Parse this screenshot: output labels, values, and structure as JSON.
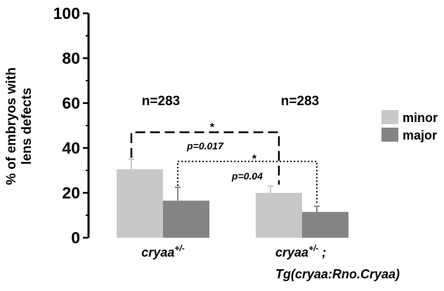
{
  "chart_data": {
    "type": "bar",
    "ylabel_lines": [
      "% of embryos with",
      "lens defects"
    ],
    "ylim": [
      0,
      100
    ],
    "yticks": [
      0,
      20,
      40,
      60,
      80,
      100
    ],
    "categories": [
      {
        "base": "cryaa",
        "sup": "+/-",
        "line1_suffix": "",
        "line2": ""
      },
      {
        "base": "cryaa",
        "sup": "+/-",
        "line1_suffix": " ;",
        "line2": "Tg(cryaa:Rno.Cryaa)"
      }
    ],
    "series": [
      {
        "name": "minor",
        "color": "#c8c8c8",
        "values": [
          30.5,
          20
        ],
        "errors": [
          4.5,
          3
        ]
      },
      {
        "name": "major",
        "color": "#848484",
        "values": [
          16.5,
          11.5
        ],
        "errors": [
          6,
          2.5
        ]
      }
    ],
    "n_labels": [
      "n=283",
      "n=283"
    ],
    "legend_position": "right",
    "annotations": [
      {
        "star": "*",
        "p": "p=0.017",
        "style": "dashed",
        "from": [
          0,
          0
        ],
        "to": [
          1,
          0
        ],
        "y": 47,
        "star_y": 49.5,
        "p_y": 41
      },
      {
        "star": "*",
        "p": "p=0.04",
        "style": "dotted",
        "from": [
          0,
          1
        ],
        "to": [
          1,
          1
        ],
        "y": 34,
        "star_y": 35.5,
        "p_y": 27.5
      }
    ]
  }
}
